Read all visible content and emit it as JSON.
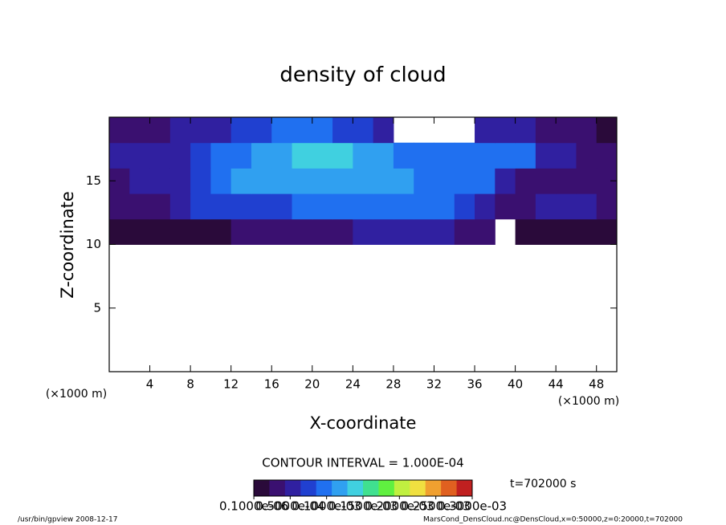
{
  "chart_data": {
    "type": "heatmap",
    "title": "density of cloud",
    "xlabel": "X-coordinate",
    "ylabel": "Z-coordinate",
    "x_unit_left": "(×1000 m)",
    "x_unit_right": "(×1000 m)",
    "xlim": [
      0,
      50
    ],
    "ylim": [
      0,
      20
    ],
    "xticks": [
      4,
      8,
      12,
      16,
      20,
      24,
      28,
      32,
      36,
      40,
      44,
      48
    ],
    "yticks": [
      5,
      10,
      15
    ],
    "xbins": [
      0,
      2,
      4,
      6,
      8,
      10,
      12,
      14,
      16,
      18,
      20,
      22,
      24,
      26,
      28,
      30,
      32,
      34,
      36,
      38,
      40,
      42,
      44,
      46,
      48,
      50
    ],
    "ybins": [
      10,
      12,
      14,
      16,
      18,
      20
    ],
    "z": [
      [
        2e-05,
        2e-05,
        2e-05,
        2e-05,
        2e-05,
        2e-05,
        3e-05,
        3e-05,
        3e-05,
        3e-05,
        4e-05,
        4e-05,
        5e-05,
        5e-05,
        5e-05,
        5e-05,
        5e-05,
        4e-05,
        3e-05,
        null,
        2e-05,
        2e-05,
        2e-05,
        2e-05,
        2e-05
      ],
      [
        3e-05,
        3e-05,
        3e-05,
        5e-05,
        7e-05,
        8e-05,
        8e-05,
        8e-05,
        8e-05,
        9e-05,
        9e-05,
        9e-05,
        9e-05,
        0.0001,
        0.0001,
        0.0001,
        9e-05,
        8e-05,
        6e-05,
        3e-05,
        4e-05,
        5e-05,
        5e-05,
        5e-05,
        3e-05
      ],
      [
        4e-05,
        5e-05,
        5e-05,
        6e-05,
        8e-05,
        0.0001,
        0.00011,
        0.00012,
        0.00011,
        0.00011,
        0.00011,
        0.00011,
        0.00011,
        0.00011,
        0.00011,
        0.0001,
        0.0001,
        0.0001,
        9e-05,
        6e-05,
        4e-05,
        4e-05,
        4e-05,
        3e-05,
        3e-05
      ],
      [
        5e-05,
        5e-05,
        5e-05,
        6e-05,
        7e-05,
        9e-05,
        0.0001,
        0.00011,
        0.00012,
        0.00013,
        0.00013,
        0.00013,
        0.00012,
        0.00011,
        0.0001,
        9e-05,
        9e-05,
        9e-05,
        0.0001,
        0.0001,
        9e-05,
        6e-05,
        5e-05,
        4e-05,
        3e-05
      ],
      [
        4e-05,
        4e-05,
        4e-05,
        5e-05,
        5e-05,
        6e-05,
        7e-05,
        8e-05,
        9e-05,
        9e-05,
        9e-05,
        8e-05,
        7e-05,
        6e-05,
        null,
        null,
        null,
        null,
        5e-05,
        6e-05,
        5e-05,
        4e-05,
        3e-05,
        3e-05,
        2e-05
      ]
    ],
    "colorbar": {
      "lim": [
        0,
        0.0003
      ],
      "colors": [
        "#2a0a3a",
        "#3a1070",
        "#3020a0",
        "#2040d0",
        "#2070f0",
        "#30a0f0",
        "#40d0e0",
        "#40e090",
        "#60f040",
        "#c0f040",
        "#f0e040",
        "#f0a030",
        "#e06020",
        "#c02020"
      ],
      "ticks": [
        {
          "value": 1e-07,
          "label": "0.1000e-06"
        },
        {
          "value": 5e-05,
          "label": "0.5000e-04"
        },
        {
          "value": 0.0001,
          "label": "0.1000e-03"
        },
        {
          "value": 0.00015,
          "label": "0.1500e-03"
        },
        {
          "value": 0.0002,
          "label": "0.2000e-03"
        },
        {
          "value": 0.00025,
          "label": "0.2500e-03"
        },
        {
          "value": 0.0003,
          "label": "0.3000e-03"
        }
      ]
    },
    "contour_interval": "CONTOUR INTERVAL = 1.000E-04",
    "time": "t=702000 s",
    "footer_left": "/usr/bin/gpview   2008-12-17",
    "footer_right": "MarsCond_DensCloud.nc@DensCloud,x=0:50000,z=0:20000,t=702000"
  }
}
